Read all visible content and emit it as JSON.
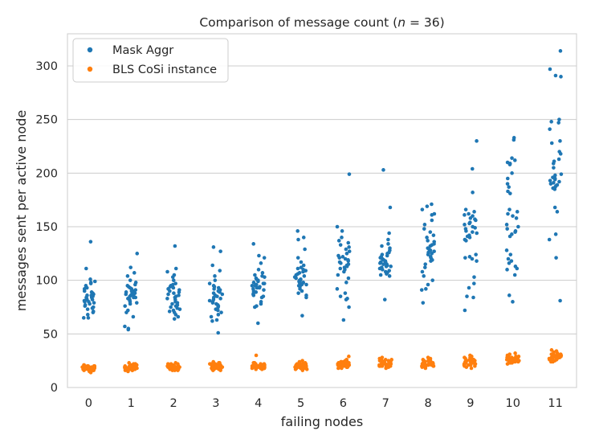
{
  "chart_data": {
    "type": "scatter",
    "subtype": "strip",
    "title": "Comparison of message count (n = 36)",
    "title_parts": {
      "prefix": "Comparison of message count (",
      "var": "n",
      "rest": " = 36)"
    },
    "xlabel": "failing nodes",
    "ylabel": "messages sent per active node",
    "categories": [
      "0",
      "1",
      "2",
      "3",
      "4",
      "5",
      "6",
      "7",
      "8",
      "9",
      "10",
      "11"
    ],
    "ylim": [
      0,
      330
    ],
    "yticks": [
      0,
      50,
      100,
      150,
      200,
      250,
      300
    ],
    "grid": true,
    "legend_position": "top-left",
    "series": [
      {
        "name": "Mask Aggr",
        "color": "#1f77b4",
        "values": [
          [
            136,
            111,
            101,
            99,
            98,
            97,
            92,
            87,
            86,
            85,
            84,
            83,
            82,
            80,
            78,
            77,
            76,
            74,
            71,
            70,
            65,
            65,
            89,
            93,
            95,
            82,
            79,
            75,
            73,
            68,
            88,
            90,
            81,
            84,
            86,
            80
          ],
          [
            125,
            112,
            107,
            104,
            100,
            98,
            96,
            94,
            92,
            91,
            90,
            89,
            88,
            87,
            86,
            85,
            84,
            83,
            82,
            81,
            80,
            79,
            78,
            76,
            72,
            70,
            66,
            57,
            55,
            54,
            93,
            95,
            88,
            86,
            90,
            84
          ],
          [
            132,
            111,
            108,
            105,
            103,
            100,
            97,
            95,
            93,
            91,
            90,
            88,
            86,
            84,
            83,
            82,
            80,
            78,
            77,
            76,
            75,
            74,
            73,
            72,
            71,
            70,
            68,
            66,
            64,
            85,
            87,
            89,
            92,
            94,
            96,
            79
          ],
          [
            131,
            127,
            114,
            109,
            104,
            100,
            97,
            95,
            93,
            91,
            89,
            87,
            85,
            83,
            82,
            81,
            80,
            78,
            77,
            76,
            75,
            73,
            72,
            70,
            68,
            66,
            63,
            62,
            51,
            86,
            88,
            90,
            92,
            94,
            79,
            84
          ],
          [
            134,
            123,
            121,
            116,
            110,
            107,
            104,
            102,
            100,
            99,
            98,
            97,
            96,
            95,
            94,
            93,
            92,
            90,
            88,
            86,
            84,
            80,
            78,
            76,
            75,
            60,
            91,
            89,
            87,
            85,
            101,
            103,
            105,
            95,
            93,
            97
          ],
          [
            146,
            140,
            138,
            129,
            121,
            117,
            114,
            112,
            110,
            108,
            106,
            105,
            104,
            103,
            102,
            101,
            100,
            99,
            98,
            97,
            96,
            95,
            94,
            92,
            90,
            88,
            86,
            84,
            67,
            107,
            109,
            111,
            103,
            100,
            98,
            96
          ],
          [
            199,
            150,
            146,
            140,
            137,
            135,
            133,
            131,
            129,
            127,
            125,
            122,
            120,
            118,
            116,
            114,
            112,
            110,
            108,
            105,
            102,
            98,
            92,
            88,
            85,
            83,
            82,
            75,
            63,
            119,
            121,
            123,
            117,
            115,
            113,
            111
          ],
          [
            203,
            168,
            144,
            138,
            134,
            132,
            130,
            128,
            126,
            124,
            122,
            121,
            120,
            119,
            118,
            117,
            116,
            115,
            114,
            113,
            112,
            111,
            110,
            109,
            108,
            107,
            106,
            105,
            104,
            82,
            125,
            123,
            119,
            117,
            115,
            113
          ],
          [
            171,
            169,
            166,
            162,
            161,
            156,
            152,
            148,
            145,
            142,
            140,
            137,
            134,
            132,
            130,
            128,
            126,
            124,
            122,
            118,
            115,
            112,
            108,
            104,
            100,
            96,
            92,
            91,
            79,
            136,
            133,
            129,
            127,
            125,
            121,
            119
          ],
          [
            230,
            204,
            182,
            166,
            164,
            162,
            160,
            158,
            156,
            154,
            152,
            150,
            148,
            146,
            144,
            142,
            140,
            138,
            124,
            122,
            120,
            118,
            103,
            97,
            93,
            85,
            84,
            72,
            161,
            157,
            153,
            149,
            145,
            141,
            137,
            121
          ],
          [
            233,
            231,
            212,
            210,
            209,
            208,
            195,
            187,
            183,
            181,
            164,
            162,
            160,
            150,
            148,
            146,
            145,
            143,
            128,
            120,
            116,
            113,
            111,
            105,
            86,
            80,
            166,
            158,
            152,
            141,
            124,
            118,
            214,
            200,
            190,
            110
          ],
          [
            314,
            297,
            291,
            290,
            250,
            248,
            241,
            228,
            218,
            213,
            209,
            199,
            196,
            193,
            191,
            189,
            187,
            185,
            168,
            164,
            143,
            138,
            121,
            81,
            247,
            230,
            205,
            195,
            190,
            188,
            186,
            194,
            192,
            198,
            211,
            220
          ]
        ]
      },
      {
        "name": "BLS CoSi instance",
        "color": "#ff7f0e",
        "values": [
          [
            20,
            19,
            18,
            17,
            16,
            15,
            20,
            19,
            18,
            21,
            17,
            19,
            18,
            20,
            16,
            18,
            19,
            17,
            21,
            18,
            20,
            19,
            17,
            18,
            16,
            19,
            20,
            18,
            17,
            19,
            18,
            20,
            17,
            19,
            18,
            14
          ],
          [
            22,
            21,
            20,
            19,
            18,
            17,
            16,
            15,
            20,
            19,
            18,
            21,
            17,
            22,
            18,
            19,
            20,
            16,
            21,
            18,
            19,
            17,
            20,
            18,
            19,
            21,
            17,
            18,
            20,
            19,
            22,
            18,
            16,
            20,
            19,
            23
          ],
          [
            22,
            21,
            20,
            19,
            18,
            17,
            16,
            20,
            19,
            18,
            21,
            17,
            22,
            18,
            19,
            20,
            16,
            21,
            18,
            19,
            17,
            20,
            18,
            19,
            21,
            17,
            18,
            20,
            19,
            22,
            18,
            16,
            20,
            19,
            21,
            23
          ],
          [
            23,
            22,
            21,
            20,
            19,
            18,
            17,
            16,
            20,
            19,
            18,
            21,
            17,
            22,
            18,
            19,
            20,
            24,
            21,
            18,
            19,
            17,
            20,
            18,
            19,
            21,
            17,
            18,
            20,
            19,
            22,
            18,
            16,
            20,
            19,
            23
          ],
          [
            30,
            23,
            22,
            21,
            20,
            19,
            18,
            17,
            20,
            19,
            18,
            21,
            22,
            18,
            19,
            20,
            21,
            18,
            19,
            20,
            18,
            19,
            21,
            17,
            18,
            20,
            19,
            22,
            18,
            20,
            19,
            21,
            23,
            20,
            19,
            22
          ],
          [
            25,
            24,
            23,
            22,
            21,
            20,
            19,
            18,
            17,
            20,
            19,
            18,
            21,
            22,
            18,
            19,
            20,
            21,
            18,
            19,
            20,
            18,
            19,
            21,
            17,
            18,
            20,
            19,
            22,
            18,
            20,
            19,
            21,
            23,
            20,
            16
          ],
          [
            29,
            26,
            25,
            24,
            23,
            22,
            21,
            20,
            19,
            18,
            22,
            21,
            20,
            23,
            24,
            19,
            20,
            21,
            22,
            18,
            20,
            21,
            22,
            23,
            19,
            20,
            21,
            24,
            25,
            22,
            20,
            21,
            23,
            19,
            22,
            21
          ],
          [
            28,
            27,
            26,
            25,
            24,
            23,
            22,
            21,
            20,
            19,
            18,
            22,
            21,
            23,
            24,
            20,
            21,
            22,
            26,
            25,
            19,
            20,
            21,
            24,
            22,
            23,
            20,
            21,
            23,
            22,
            24,
            21,
            20,
            25,
            22,
            23
          ],
          [
            28,
            27,
            26,
            25,
            24,
            23,
            22,
            21,
            20,
            19,
            18,
            22,
            21,
            23,
            24,
            20,
            21,
            22,
            26,
            25,
            19,
            20,
            21,
            24,
            22,
            23,
            20,
            21,
            23,
            22,
            24,
            21,
            20,
            25,
            22,
            23
          ],
          [
            30,
            29,
            28,
            27,
            26,
            25,
            24,
            23,
            22,
            21,
            20,
            19,
            18,
            23,
            24,
            25,
            26,
            22,
            21,
            20,
            24,
            23,
            22,
            27,
            28,
            25,
            26,
            21,
            22,
            23,
            24,
            25,
            26,
            23,
            22,
            24
          ],
          [
            32,
            31,
            30,
            29,
            28,
            27,
            26,
            25,
            24,
            23,
            22,
            26,
            27,
            28,
            25,
            24,
            23,
            26,
            27,
            28,
            29,
            25,
            24,
            26,
            27,
            25,
            26,
            28,
            24,
            25,
            26,
            27,
            25,
            26,
            24,
            25
          ],
          [
            35,
            34,
            33,
            32,
            31,
            30,
            29,
            28,
            27,
            26,
            25,
            24,
            29,
            30,
            31,
            28,
            27,
            26,
            29,
            30,
            28,
            27,
            31,
            32,
            29,
            28,
            30,
            27,
            26,
            29,
            28,
            30,
            29,
            28,
            27,
            24
          ]
        ]
      }
    ]
  }
}
